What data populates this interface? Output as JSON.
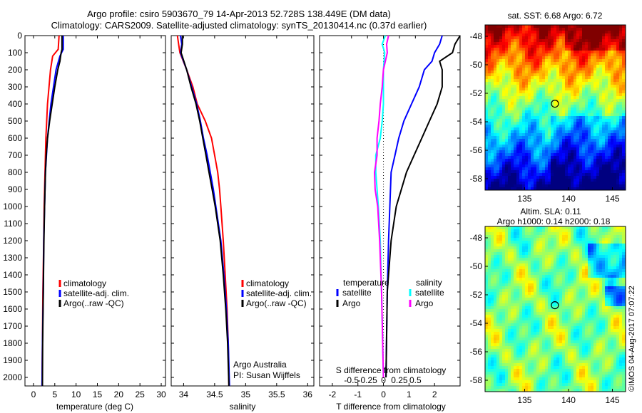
{
  "titles": {
    "line1": "Argo profile: csiro 5903670_79 14-Apr-2013 52.728S 138.449E (DM data)",
    "line2": "Climatology: CARS2009. Satellite-adjusted climatology: synTS_20130414.nc (0.37d earlier)"
  },
  "watermark": "©IMOS 04-Aug-2017 07:07:22",
  "colors": {
    "climatology": "#ff0000",
    "satellite": "#0000ff",
    "argo": "#000000",
    "satellite_s": "#00ffff",
    "argo_s": "#ff00ff"
  },
  "chart_data": [
    {
      "id": "temperature",
      "type": "line",
      "xlabel": "temperature (deg C)",
      "ylabel": "",
      "xlim": [
        -2,
        31
      ],
      "ylim": [
        2050,
        0
      ],
      "xticks": [
        "0",
        "5",
        "10",
        "15",
        "20",
        "25",
        "30"
      ],
      "yticks": [
        "0",
        "100",
        "200",
        "300",
        "400",
        "500",
        "600",
        "700",
        "800",
        "900",
        "1000",
        "1100",
        "1200",
        "1300",
        "1400",
        "1500",
        "1600",
        "1700",
        "1800",
        "1900",
        "2000"
      ],
      "legend": {
        "position": "lower-middle",
        "entries": [
          "climatology",
          "satellite-adj. clim.",
          "Argo(..raw -QC)"
        ]
      },
      "series": [
        {
          "name": "climatology",
          "depth": [
            0,
            80,
            120,
            200,
            400,
            600,
            800,
            1000,
            1200,
            1500,
            1800,
            2050
          ],
          "values": [
            6.0,
            5.8,
            4.5,
            4.0,
            3.3,
            2.9,
            2.7,
            2.5,
            2.4,
            2.2,
            2.1,
            2.0
          ]
        },
        {
          "name": "satellite-adj. clim.",
          "depth": [
            0,
            80,
            120,
            200,
            400,
            600,
            800,
            1000,
            1200,
            1500,
            1800,
            2050
          ],
          "values": [
            7.0,
            7.0,
            6.2,
            5.3,
            4.1,
            3.3,
            2.8,
            2.6,
            2.4,
            2.3,
            2.1,
            2.0
          ]
        },
        {
          "name": "Argo(..raw -QC)",
          "depth": [
            0,
            80,
            100,
            150,
            200,
            300,
            400,
            500,
            600,
            700,
            800,
            1000,
            1200,
            1500,
            1800,
            2050
          ],
          "values": [
            6.7,
            6.7,
            6.5,
            6.2,
            5.7,
            5.0,
            4.4,
            3.8,
            3.3,
            3.0,
            2.8,
            2.6,
            2.45,
            2.3,
            2.15,
            2.1
          ]
        }
      ]
    },
    {
      "id": "salinity",
      "type": "line",
      "xlabel": "salinity",
      "ylabel": "",
      "xlim": [
        33.8,
        36.1
      ],
      "ylim": [
        2050,
        0
      ],
      "xticks": [
        "34",
        "34.5",
        "35",
        "35.5",
        "36"
      ],
      "legend": {
        "position": "lower-right",
        "entries": [
          "climatology",
          "satellite-adj. clim.",
          "Argo(..raw -QC)"
        ]
      },
      "annotations": [
        "Argo Australia",
        "PI: Susan Wijffels"
      ],
      "series": [
        {
          "name": "climatology",
          "depth": [
            0,
            50,
            100,
            200,
            300,
            400,
            500,
            600,
            700,
            800,
            900,
            1000,
            1100,
            1200,
            1400,
            1600,
            1800,
            2050
          ],
          "values": [
            33.9,
            33.92,
            33.94,
            34.05,
            34.15,
            34.22,
            34.35,
            34.45,
            34.5,
            34.55,
            34.58,
            34.6,
            34.62,
            34.64,
            34.67,
            34.7,
            34.72,
            34.73
          ]
        },
        {
          "name": "satellite-adj. clim.",
          "depth": [
            0,
            50,
            100,
            200,
            300,
            400,
            500,
            600,
            700,
            800,
            900,
            1000,
            1100,
            1200,
            1400,
            1600,
            1800,
            2050
          ],
          "values": [
            33.95,
            33.97,
            33.95,
            34.05,
            34.13,
            34.21,
            34.27,
            34.32,
            34.38,
            34.43,
            34.48,
            34.52,
            34.56,
            34.6,
            34.65,
            34.69,
            34.72,
            34.74
          ]
        },
        {
          "name": "Argo(..raw -QC)",
          "depth": [
            0,
            50,
            100,
            200,
            300,
            400,
            500,
            600,
            700,
            800,
            900,
            1000,
            1100,
            1200,
            1400,
            1600,
            1800,
            2050
          ],
          "values": [
            33.98,
            33.98,
            33.96,
            34.05,
            34.12,
            34.2,
            34.26,
            34.31,
            34.36,
            34.41,
            34.46,
            34.51,
            34.55,
            34.59,
            34.64,
            34.68,
            34.71,
            34.73
          ]
        }
      ]
    },
    {
      "id": "difference",
      "type": "line",
      "xlabel": "T difference from climatology",
      "xlabel_top": "S difference from climatology",
      "xlim": [
        -2.5,
        3
      ],
      "ylim": [
        2050,
        0
      ],
      "xticks_t": [
        "-2",
        "-1",
        "0",
        "1",
        "2"
      ],
      "xticks_s": [
        "-0.5",
        "-0.25",
        "0",
        "0.25",
        "0.5"
      ],
      "legend": {
        "position": "lower-middle",
        "headers": [
          "temperature",
          "salinity"
        ],
        "entries": [
          "satellite",
          "Argo",
          "satellite",
          "Argo"
        ]
      },
      "series": [
        {
          "name": "satellite",
          "variable": "temperature",
          "depth": [
            0,
            50,
            100,
            150,
            200,
            300,
            400,
            500,
            600,
            700,
            800,
            1000,
            1200,
            1500,
            2000
          ],
          "values": [
            2.3,
            2.2,
            2.0,
            1.9,
            1.6,
            1.4,
            1.1,
            0.8,
            0.6,
            0.45,
            0.3,
            0.25,
            0.2,
            0.15,
            0.1
          ]
        },
        {
          "name": "Argo",
          "variable": "temperature",
          "depth": [
            0,
            50,
            100,
            150,
            200,
            300,
            400,
            500,
            600,
            700,
            800,
            1000,
            1200,
            1500,
            2000
          ],
          "values": [
            3.0,
            2.8,
            2.7,
            2.2,
            2.3,
            2.3,
            2.1,
            1.8,
            1.5,
            1.2,
            0.9,
            0.5,
            0.3,
            0.15,
            0.1
          ]
        },
        {
          "name": "satellite",
          "variable": "salinity",
          "depth": [
            0,
            50,
            100,
            200,
            300,
            400,
            500,
            600,
            700,
            800,
            900,
            1000,
            1200,
            1500,
            2000
          ],
          "values": [
            0.03,
            -0.02,
            0.02,
            0.0,
            0.0,
            0.0,
            -0.02,
            -0.05,
            -0.12,
            -0.12,
            -0.1,
            -0.08,
            -0.05,
            -0.03,
            0.0
          ]
        },
        {
          "name": "Argo",
          "variable": "salinity",
          "depth": [
            0,
            50,
            100,
            200,
            300,
            400,
            500,
            600,
            700,
            800,
            900,
            1000,
            1200,
            1500,
            2000
          ],
          "values": [
            0.08,
            0.05,
            0.06,
            0.0,
            -0.02,
            -0.05,
            -0.07,
            -0.1,
            -0.1,
            -0.14,
            -0.13,
            -0.09,
            -0.06,
            -0.03,
            0.0
          ]
        }
      ]
    },
    {
      "id": "sst-map",
      "type": "heatmap",
      "title": "sat. SST: 6.68 Argo: 6.72",
      "xlim": [
        130.5,
        146.5
      ],
      "ylim": [
        -58.8,
        -47.2
      ],
      "xticks": [
        "135",
        "140",
        "145"
      ],
      "yticks": [
        "-48",
        "-50",
        "-52",
        "-54",
        "-56",
        "-58"
      ],
      "marker": {
        "lon": 138.449,
        "lat": -52.728
      }
    },
    {
      "id": "sla-map",
      "type": "heatmap",
      "title": "Altim. SLA: 0.11",
      "subtitle": "Argo h1000: 0.14 h2000: 0.18",
      "xlim": [
        130.5,
        146.5
      ],
      "ylim": [
        -58.8,
        -47.2
      ],
      "xticks": [
        "135",
        "140",
        "145"
      ],
      "yticks": [
        "-48",
        "-50",
        "-52",
        "-54",
        "-56",
        "-58"
      ],
      "marker": {
        "lon": 138.449,
        "lat": -52.728
      }
    }
  ]
}
